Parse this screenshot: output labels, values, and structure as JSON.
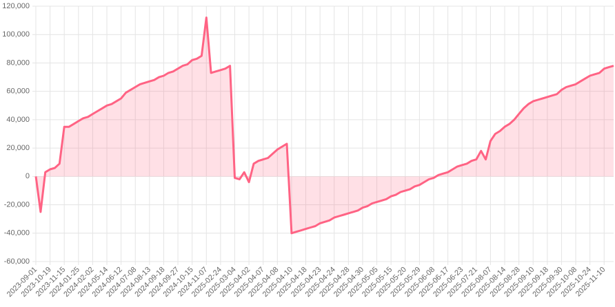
{
  "chart_data": {
    "type": "line",
    "categories": [
      "2023-09-01",
      null,
      null,
      "2023-10-19",
      null,
      null,
      "2023-11-15",
      null,
      null,
      "2024-01-25",
      null,
      null,
      "2024-02-02",
      null,
      null,
      "2024-05-14",
      null,
      null,
      "2024-06-12",
      null,
      null,
      "2024-07-08",
      null,
      null,
      "2024-08-13",
      null,
      null,
      "2024-09-18",
      null,
      null,
      "2024-09-27",
      null,
      null,
      "2024-10-15",
      null,
      null,
      "2024-11-07",
      null,
      null,
      "2025-02-24",
      null,
      null,
      "2025-03-04",
      null,
      null,
      "2025-04-02",
      null,
      null,
      "2025-04-07",
      null,
      null,
      "2025-04-08",
      null,
      null,
      "2025-04-10",
      null,
      null,
      "2025-04-18",
      null,
      null,
      "2025-04-23",
      null,
      null,
      "2025-04-24",
      null,
      null,
      "2025-04-28",
      null,
      null,
      "2025-04-30",
      null,
      null,
      "2025-05-05",
      null,
      null,
      "2025-05-15",
      null,
      null,
      "2025-05-20",
      null,
      null,
      "2025-05-29",
      null,
      null,
      "2025-06-08",
      null,
      null,
      "2025-06-17",
      null,
      null,
      "2025-06-23",
      null,
      null,
      "2025-07-21",
      null,
      null,
      "2025-08-07",
      null,
      null,
      "2025-08-14",
      null,
      null,
      "2025-08-28",
      null,
      null,
      "2025-09-10",
      null,
      null,
      "2025-09-18",
      null,
      null,
      "2025-09-30",
      null,
      null,
      "2025-10-08",
      null,
      null,
      "2025-10-24",
      null,
      null,
      "2025-11-10",
      null,
      null
    ],
    "series": [
      {
        "color": "#ff6384",
        "values": [
          0,
          -25000,
          3000,
          5000,
          6000,
          9000,
          35000,
          35000,
          37000,
          39000,
          41000,
          42000,
          44000,
          46000,
          48000,
          50000,
          51000,
          53000,
          55000,
          59000,
          61000,
          63000,
          65000,
          66000,
          67000,
          68000,
          70000,
          71000,
          73000,
          74000,
          76000,
          78000,
          79000,
          82000,
          83000,
          85000,
          112000,
          73000,
          74000,
          75000,
          76000,
          78000,
          -1000,
          -2000,
          3000,
          -4000,
          9000,
          11000,
          12000,
          13000,
          16000,
          19000,
          21000,
          23000,
          -40000,
          -39000,
          -38000,
          -37000,
          -36000,
          -35000,
          -33000,
          -32000,
          -31000,
          -29000,
          -28000,
          -27000,
          -26000,
          -25000,
          -24000,
          -22000,
          -21000,
          -19000,
          -18000,
          -17000,
          -16000,
          -14000,
          -13000,
          -11000,
          -10000,
          -9000,
          -7000,
          -6000,
          -4000,
          -2000,
          -1000,
          1000,
          2000,
          3000,
          5000,
          7000,
          8000,
          9000,
          11000,
          12000,
          18000,
          12000,
          25000,
          30000,
          32000,
          35000,
          37000,
          40000,
          44000,
          48000,
          51000,
          53000,
          54000,
          55000,
          56000,
          57000,
          58000,
          61000,
          63000,
          64000,
          65000,
          67000,
          69000,
          71000,
          72000,
          73000,
          76000,
          77000,
          78000
        ]
      }
    ],
    "ylim": [
      -60000,
      120000
    ],
    "yticks": [
      {
        "value": -60000,
        "label": "-60,000"
      },
      {
        "value": -40000,
        "label": "-40,000"
      },
      {
        "value": -20000,
        "label": "-20,000"
      },
      0,
      {
        "value": 20000,
        "label": "20,000"
      },
      {
        "value": 40000,
        "label": "40,000"
      },
      {
        "value": 60000,
        "label": "60,000"
      },
      {
        "value": 80000,
        "label": "80,000"
      },
      {
        "value": 100000,
        "label": "100,000"
      },
      {
        "value": 120000,
        "label": "120,000"
      }
    ],
    "grid": true,
    "fill": true
  }
}
